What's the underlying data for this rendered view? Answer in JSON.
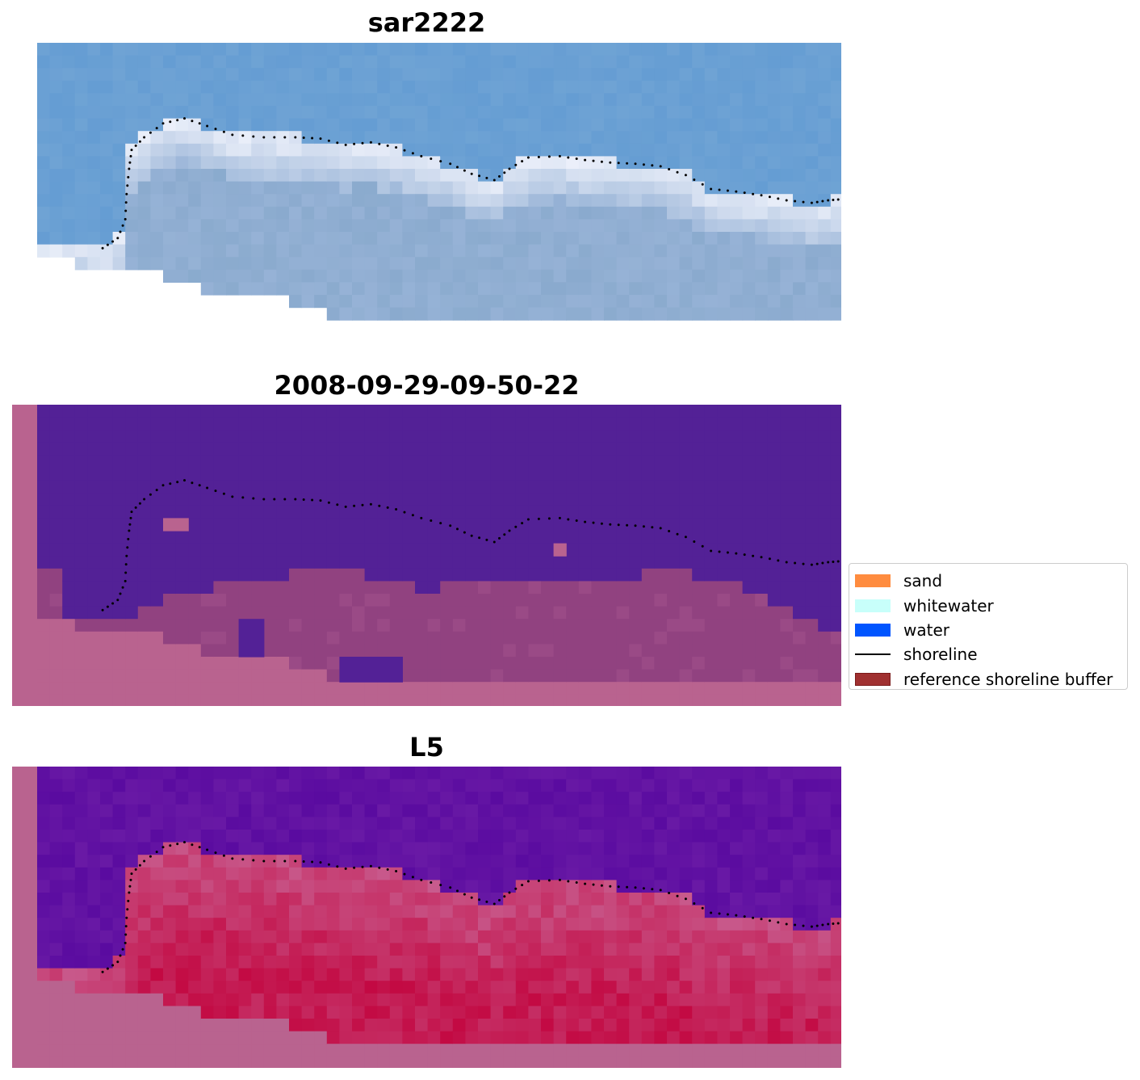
{
  "figure": {
    "panels": [
      {
        "title": "sar2222",
        "kind": "rgb"
      },
      {
        "title": "2008-09-29-09-50-22",
        "kind": "classification"
      },
      {
        "title": "L5",
        "kind": "index"
      }
    ]
  },
  "legend": {
    "items": [
      {
        "label": "sand",
        "type": "patch",
        "color": "#ff8c3f"
      },
      {
        "label": "whitewater",
        "type": "patch",
        "color": "#c8fffa"
      },
      {
        "label": "water",
        "type": "patch",
        "color": "#0055ff"
      },
      {
        "label": "shoreline",
        "type": "line",
        "color": "#000000"
      },
      {
        "label": "reference shoreline buffer",
        "type": "patch",
        "color": "#a03030",
        "edge": "#7a1a1a"
      }
    ]
  },
  "chart_data": {
    "type": "heatmap",
    "grid_size": [
      64,
      22
    ],
    "colors": {
      "nodata_buffer": "#b9638f",
      "sea": "#532196",
      "land": "#914280",
      "sky_rgb": "#6fa3d4",
      "index_low": "#5a0ba0",
      "index_high": "#c2003a"
    },
    "shoreline_points": [
      [
        5.2,
        16.3
      ],
      [
        6.4,
        15.5
      ],
      [
        7.0,
        14.0
      ],
      [
        7.1,
        12.0
      ],
      [
        7.3,
        10.0
      ],
      [
        7.5,
        8.5
      ],
      [
        8.5,
        7.5
      ],
      [
        10.0,
        6.4
      ],
      [
        11.7,
        6.0
      ],
      [
        13.5,
        6.6
      ],
      [
        15.5,
        7.3
      ],
      [
        18.0,
        7.5
      ],
      [
        20.5,
        7.5
      ],
      [
        22.5,
        7.6
      ],
      [
        24.5,
        8.1
      ],
      [
        26.5,
        7.9
      ],
      [
        28.5,
        8.3
      ],
      [
        30.5,
        9.0
      ],
      [
        32.8,
        9.6
      ],
      [
        34.5,
        10.4
      ],
      [
        36.3,
        10.9
      ],
      [
        37.5,
        10.0
      ],
      [
        39.0,
        9.1
      ],
      [
        41.5,
        9.0
      ],
      [
        43.5,
        9.3
      ],
      [
        45.5,
        9.5
      ],
      [
        47.5,
        9.6
      ],
      [
        49.5,
        9.8
      ],
      [
        51.5,
        10.5
      ],
      [
        53.5,
        11.6
      ],
      [
        55.5,
        11.8
      ],
      [
        57.5,
        12.1
      ],
      [
        59.5,
        12.5
      ],
      [
        61.5,
        12.7
      ],
      [
        62.8,
        12.5
      ],
      [
        64.0,
        12.4
      ]
    ]
  }
}
